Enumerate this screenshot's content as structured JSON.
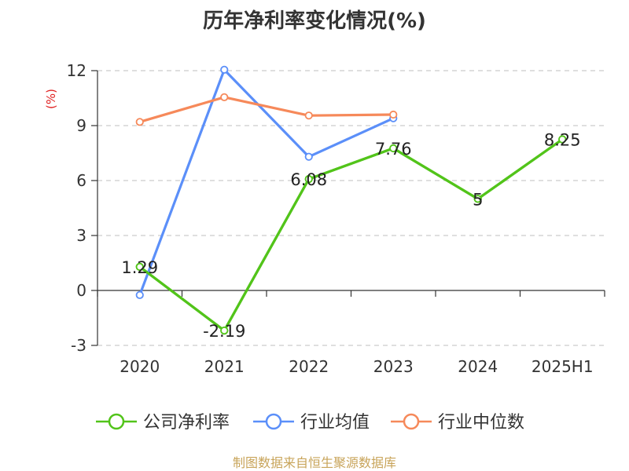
{
  "title": "历年净利率变化情况(%)",
  "footer": "制图数据来自恒生聚源数据库",
  "chart_data": {
    "type": "line",
    "title": "历年净利率变化情况(%)",
    "ylabel": "(%)",
    "xlabel": "",
    "categories": [
      "2020",
      "2021",
      "2022",
      "2023",
      "2024",
      "2025H1"
    ],
    "ylim": [
      -3,
      12
    ],
    "yticks": [
      -3,
      0,
      3,
      6,
      9,
      12
    ],
    "grid": true,
    "legend_position": "bottom",
    "series": [
      {
        "name": "公司净利率",
        "color": "#52c41a",
        "values": [
          1.29,
          -2.19,
          6.08,
          7.76,
          5,
          8.25
        ],
        "labels": [
          "1.29",
          "-2.19",
          "6.08",
          "7.76",
          "5",
          "8.25"
        ]
      },
      {
        "name": "行业均值",
        "color": "#5b8ff9",
        "values": [
          -0.25,
          12.05,
          7.3,
          9.4,
          null,
          null
        ]
      },
      {
        "name": "行业中位数",
        "color": "#f6895a",
        "values": [
          9.2,
          10.55,
          9.55,
          9.6,
          null,
          null
        ]
      }
    ]
  }
}
